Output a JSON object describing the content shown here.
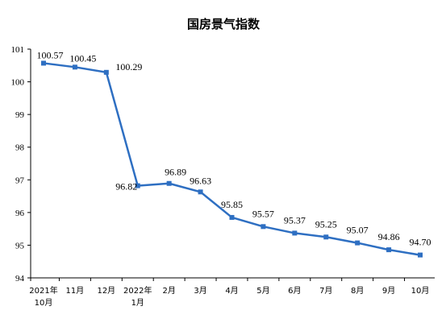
{
  "chart_data": {
    "type": "line",
    "title": "国房景气指数",
    "xlabel": "",
    "ylabel": "",
    "ylim": [
      94,
      101
    ],
    "yticks": [
      "94",
      "95",
      "96",
      "97",
      "98",
      "99",
      "100",
      "101"
    ],
    "grid": false,
    "categories": [
      [
        "2021年",
        "10月"
      ],
      [
        "11月"
      ],
      [
        "12月"
      ],
      [
        "2022年",
        "1月"
      ],
      [
        "2月"
      ],
      [
        "3月"
      ],
      [
        "4月"
      ],
      [
        "5月"
      ],
      [
        "6月"
      ],
      [
        "7月"
      ],
      [
        "8月"
      ],
      [
        "9月"
      ],
      [
        "10月"
      ]
    ],
    "series": [
      {
        "values": [
          100.57,
          100.45,
          100.29,
          96.82,
          96.89,
          96.63,
          95.85,
          95.57,
          95.37,
          95.25,
          95.07,
          94.86,
          94.7
        ],
        "labels": [
          "100.57",
          "100.45",
          "100.29",
          "96.82",
          "96.89",
          "96.63",
          "95.85",
          "95.57",
          "95.37",
          "95.25",
          "95.07",
          "94.86",
          "94.70"
        ],
        "color": "#2e6fc2"
      }
    ]
  }
}
